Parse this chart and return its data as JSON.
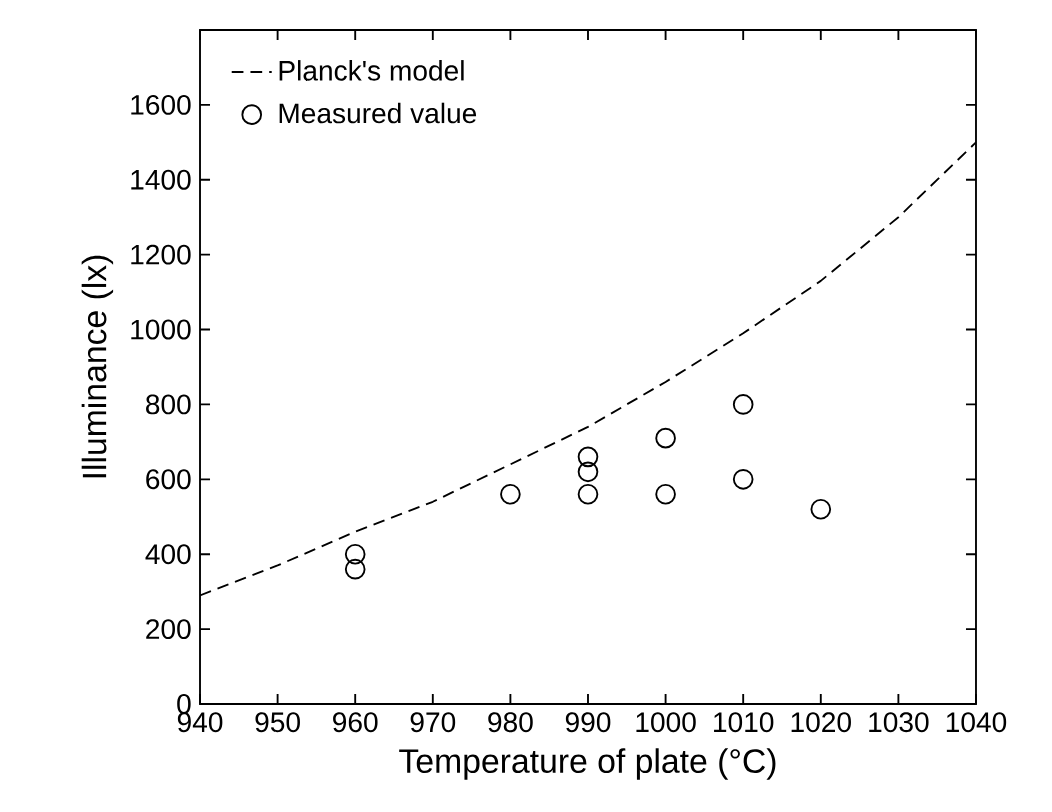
{
  "chart_data": {
    "type": "scatter",
    "xlabel": "Temperature of plate (°C)",
    "ylabel": "Illuminance (lx)",
    "xlim": [
      940,
      1040
    ],
    "xticks": [
      940,
      950,
      960,
      970,
      980,
      990,
      1000,
      1010,
      1020,
      1030,
      1040
    ],
    "ylim": [
      0,
      1800
    ],
    "yticks": [
      0,
      200,
      400,
      600,
      800,
      1000,
      1200,
      1400,
      1600
    ],
    "grid": false,
    "legend": "top left",
    "series": [
      {
        "name": "Planck's model",
        "type": "line",
        "line_style": "dashed",
        "marker": "none",
        "color": "#000000",
        "x": [
          940,
          950,
          960,
          970,
          980,
          990,
          1000,
          1010,
          1020,
          1030,
          1040
        ],
        "values": [
          290,
          370,
          460,
          540,
          640,
          740,
          860,
          990,
          1130,
          1300,
          1500
        ]
      },
      {
        "name": "Measured value",
        "marker": "circle",
        "color": "#000000",
        "x": [
          960,
          960,
          980,
          990,
          990,
          990,
          1000,
          1000,
          1010,
          1010,
          1020
        ],
        "values": [
          400,
          360,
          560,
          660,
          620,
          560,
          710,
          560,
          600,
          800,
          520
        ]
      }
    ]
  }
}
